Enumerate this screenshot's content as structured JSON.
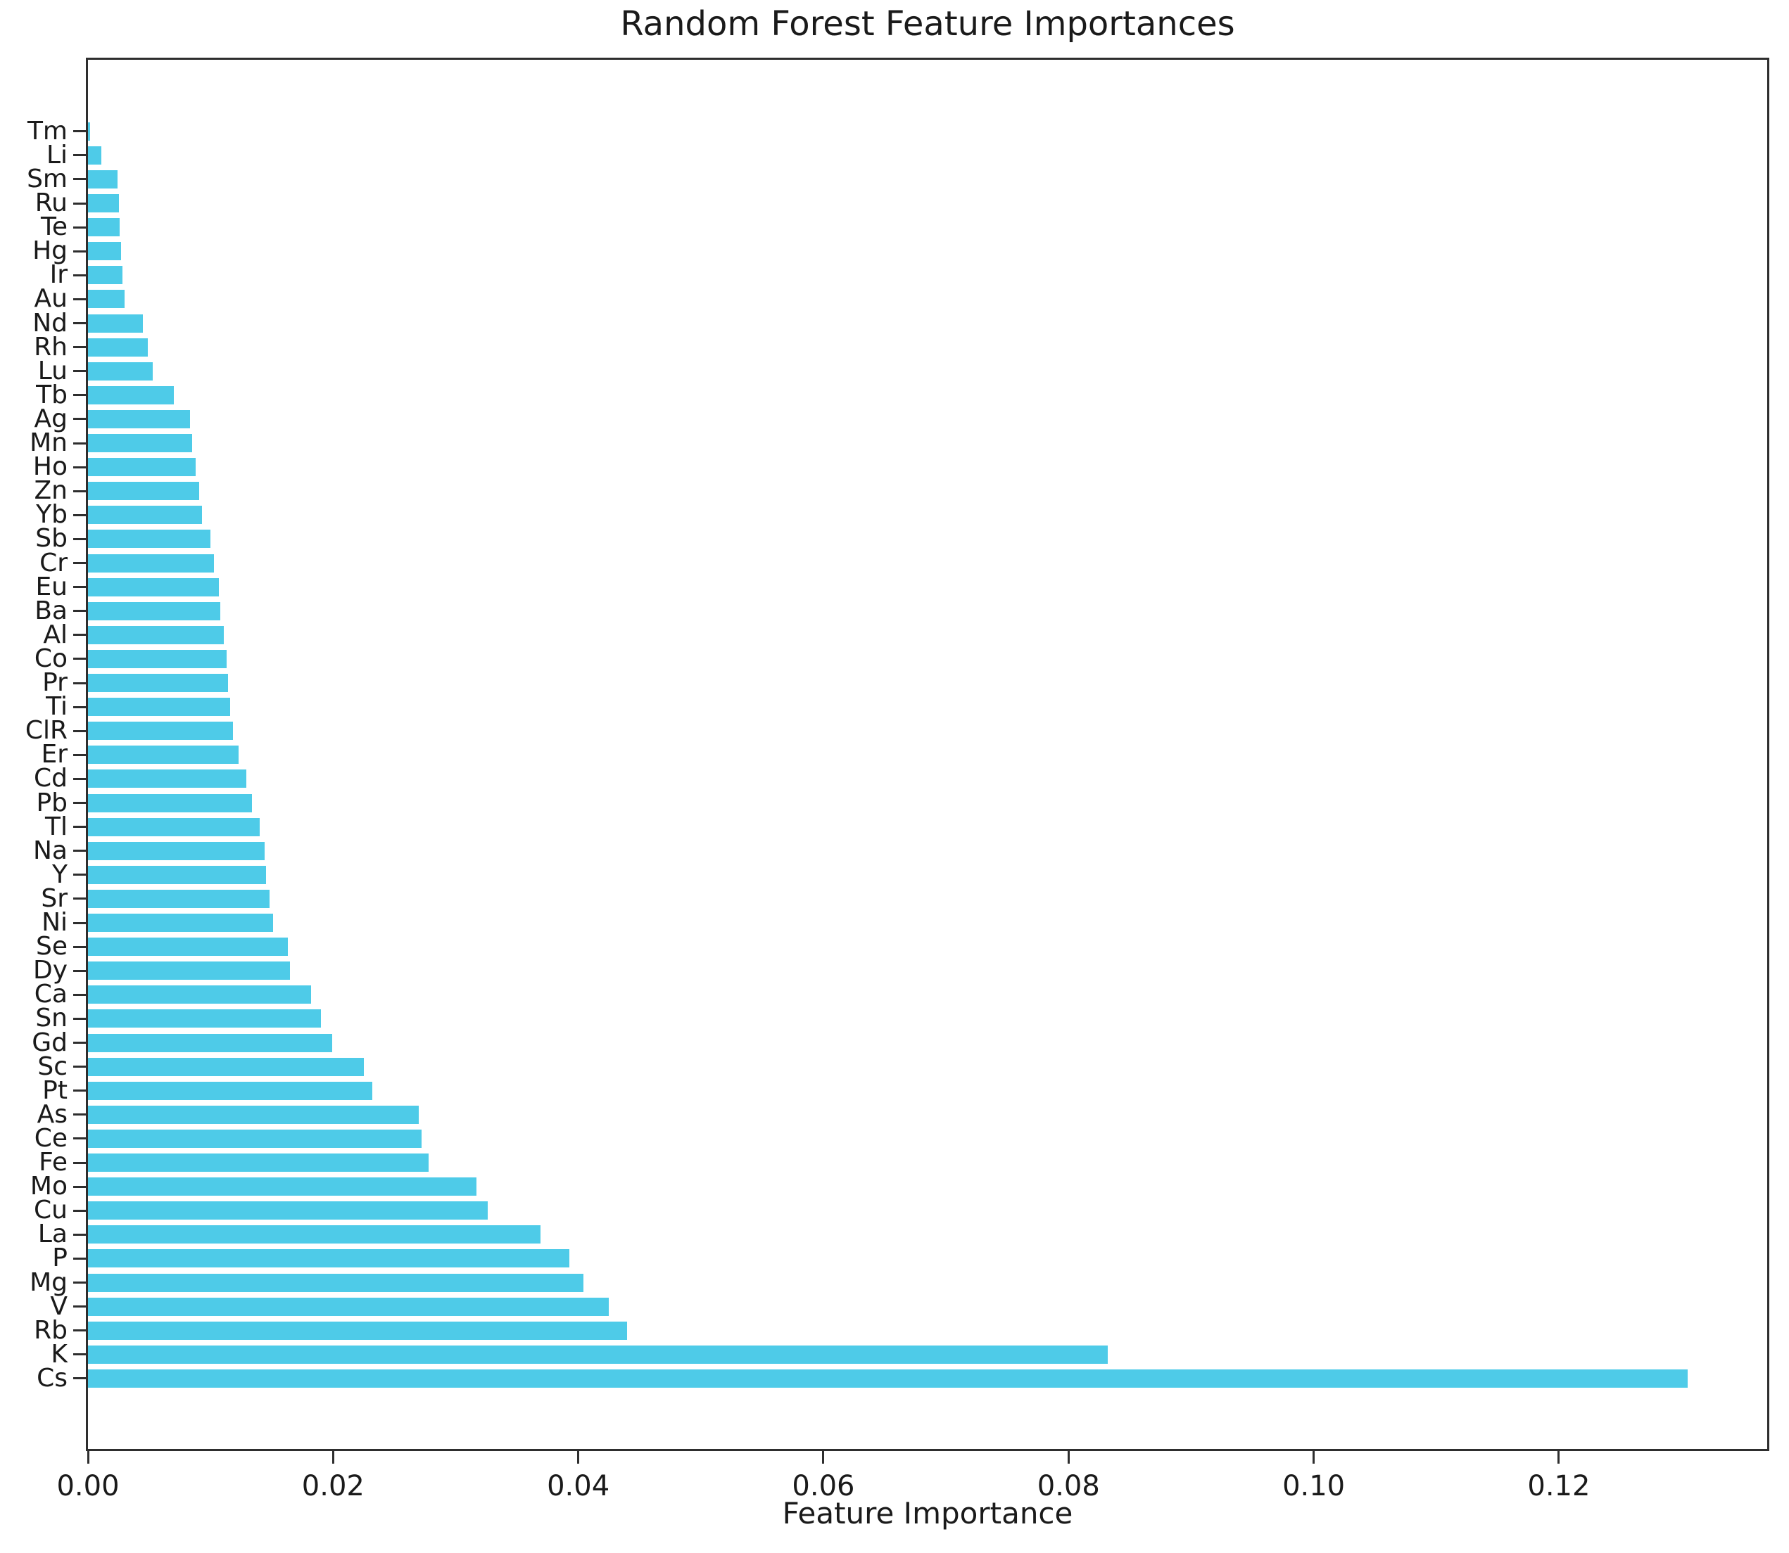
{
  "chart_data": {
    "type": "bar",
    "orientation": "horizontal",
    "title": "Random Forest Feature Importances",
    "xlabel": "Feature Importance",
    "ylabel": "",
    "bar_color": "#4ECBE8",
    "axis_color": "#2e2e2e",
    "text_color": "#1a1a1a",
    "grid": false,
    "legend": null,
    "order_note": "sorted ascending from top (Tm) to bottom (Cs)",
    "xlim": [
      0,
      0.137
    ],
    "xtick_labels": [
      "0.00",
      "0.02",
      "0.04",
      "0.06",
      "0.08",
      "0.10",
      "0.12"
    ],
    "xtick_values": [
      0.0,
      0.02,
      0.04,
      0.06,
      0.08,
      0.1,
      0.12
    ],
    "categories": [
      "Tm",
      "Li",
      "Sm",
      "Ru",
      "Te",
      "Hg",
      "Ir",
      "Au",
      "Nd",
      "Rh",
      "Lu",
      "Tb",
      "Ag",
      "Mn",
      "Ho",
      "Zn",
      "Yb",
      "Sb",
      "Cr",
      "Eu",
      "Ba",
      "Al",
      "Co",
      "Pr",
      "Ti",
      "ClR",
      "Er",
      "Cd",
      "Pb",
      "Tl",
      "Na",
      "Y",
      "Sr",
      "Ni",
      "Se",
      "Dy",
      "Ca",
      "Sn",
      "Gd",
      "Sc",
      "Pt",
      "As",
      "Ce",
      "Fe",
      "Mo",
      "Cu",
      "La",
      "P",
      "Mg",
      "V",
      "Rb",
      "K",
      "Cs"
    ],
    "values": [
      0.0002,
      0.0011,
      0.0024,
      0.0025,
      0.0026,
      0.0027,
      0.0028,
      0.003,
      0.0045,
      0.0049,
      0.0053,
      0.007,
      0.0083,
      0.0085,
      0.0088,
      0.0091,
      0.0093,
      0.01,
      0.0103,
      0.0107,
      0.0108,
      0.0111,
      0.0113,
      0.0114,
      0.0116,
      0.0118,
      0.0123,
      0.0129,
      0.0134,
      0.014,
      0.0144,
      0.0145,
      0.0148,
      0.0151,
      0.0163,
      0.0165,
      0.0182,
      0.019,
      0.0199,
      0.0225,
      0.0232,
      0.027,
      0.0272,
      0.0278,
      0.0317,
      0.0326,
      0.0369,
      0.0393,
      0.0404,
      0.0425,
      0.044,
      0.0832,
      0.1305
    ]
  }
}
